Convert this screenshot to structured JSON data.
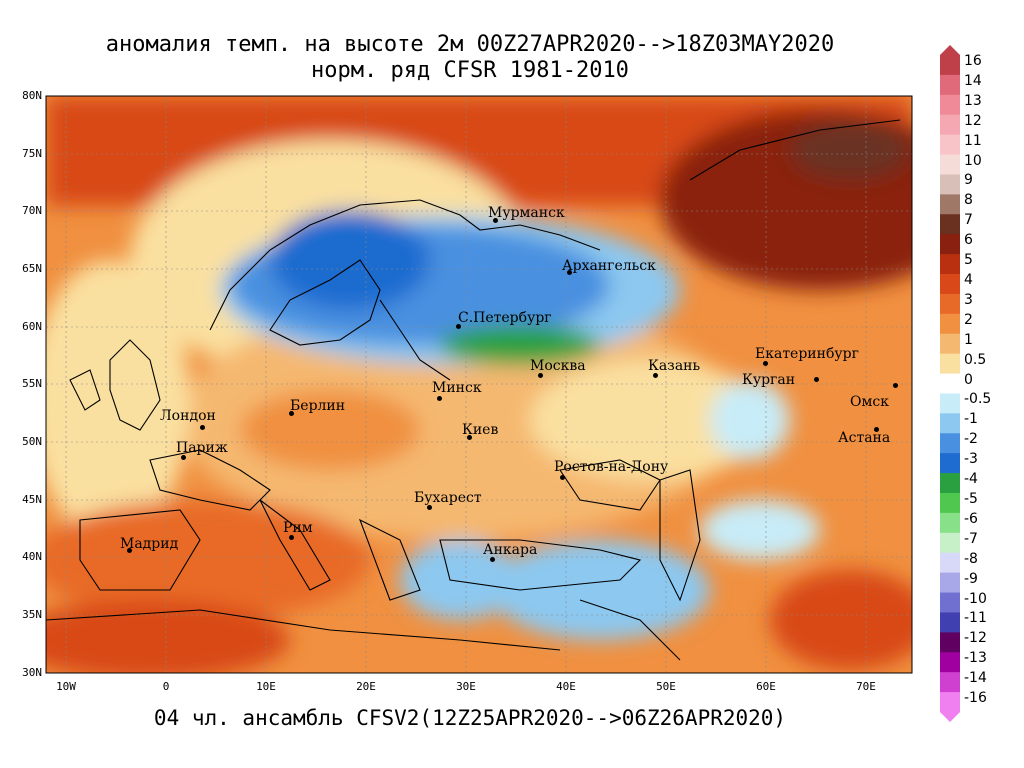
{
  "title_line1": "аномалия темп. на высоте 2м 00Z27APR2020-->18Z03MAY2020",
  "title_line2": "норм. ряд CFSR 1981-2010",
  "footer": "04 чл. ансамбль CFSV2(12Z25APR2020-->06Z26APR2020)",
  "lat_labels": [
    "80N",
    "75N",
    "70N",
    "65N",
    "60N",
    "55N",
    "50N",
    "45N",
    "40N",
    "35N",
    "30N"
  ],
  "lon_labels": [
    "10W",
    "0",
    "10E",
    "20E",
    "30E",
    "40E",
    "50E",
    "60E",
    "70E"
  ],
  "cities": {
    "murmansk": "Мурманск",
    "arkhangelsk": "Архангельск",
    "spb": "С.Петербург",
    "moscow": "Москва",
    "kazan": "Казань",
    "ekaterinburg": "Екатеринбург",
    "kurgan": "Курган",
    "omsk": "Омск",
    "astana": "Астана",
    "minsk": "Минск",
    "berlin": "Берлин",
    "london": "Лондон",
    "paris": "Париж",
    "kiev": "Киев",
    "rostov": "Ростов-на-Дону",
    "bucharest": "Бухарест",
    "rome": "Рим",
    "madrid": "Мадрид",
    "ankara": "Анкара"
  },
  "colorbar": {
    "labels": [
      "16",
      "14",
      "13",
      "12",
      "11",
      "10",
      "9",
      "8",
      "7",
      "6",
      "5",
      "4",
      "3",
      "2",
      "1",
      "0.5",
      "0",
      "-0.5",
      "-1",
      "-2",
      "-3",
      "-4",
      "-5",
      "-6",
      "-7",
      "-8",
      "-9",
      "-10",
      "-11",
      "-12",
      "-13",
      "-14",
      "-16"
    ],
    "colors": [
      "#c0404a",
      "#e06a7a",
      "#f08a98",
      "#f5a8b2",
      "#f8c4c8",
      "#f6dcd8",
      "#d8c0b8",
      "#a07868",
      "#6a3020",
      "#8a2010",
      "#b83010",
      "#d84818",
      "#e86a28",
      "#f09040",
      "#f5b870",
      "#fae0a0",
      "#ffffff",
      "#c8ecf8",
      "#8cc8f0",
      "#4a90e0",
      "#1e6cd0",
      "#2aa040",
      "#50c850",
      "#88e088",
      "#c8f0c8",
      "#d8d8f8",
      "#a8a8e8",
      "#7070d0",
      "#4040b0",
      "#600060",
      "#a000a0",
      "#d040d0",
      "#f080f0"
    ]
  }
}
